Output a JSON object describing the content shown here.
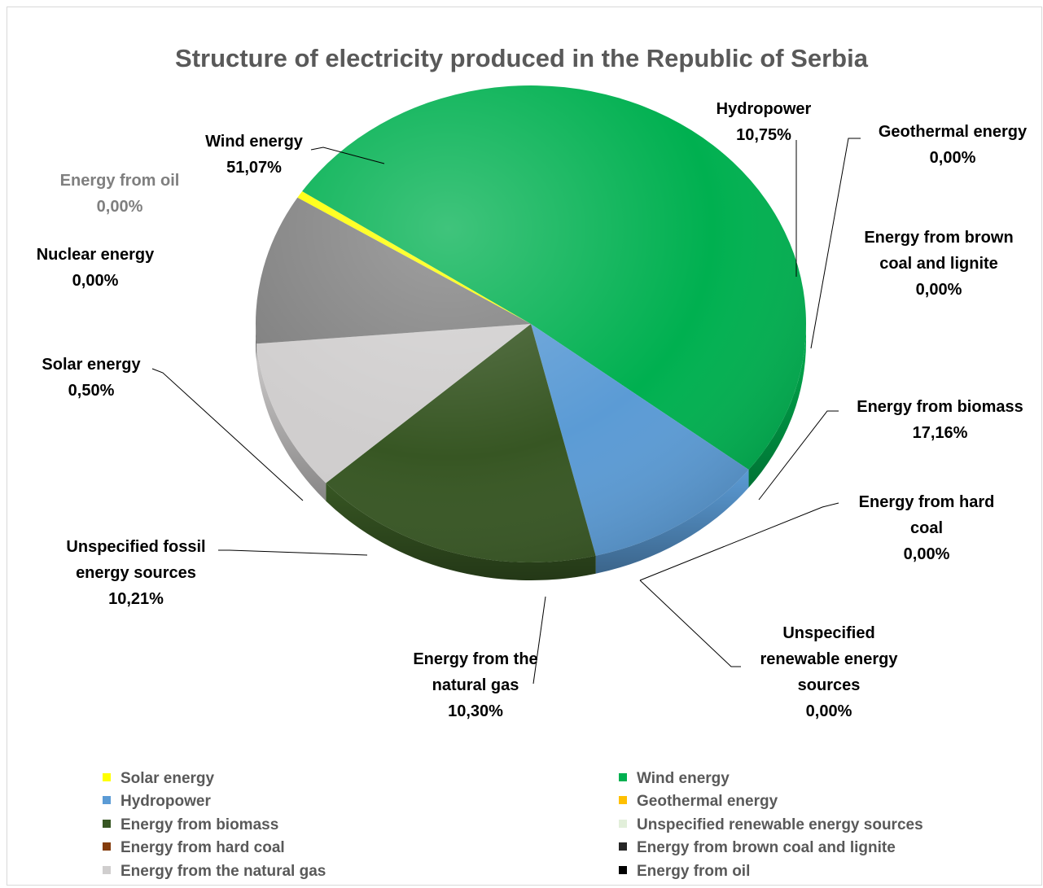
{
  "chart_data": {
    "type": "pie",
    "title": "Structure of electricity produced in the Republic of Serbia",
    "slices": [
      {
        "name": "Solar energy",
        "value": 0.5,
        "label": "0,50%",
        "color": "#ffff00"
      },
      {
        "name": "Wind energy",
        "value": 51.07,
        "label": "51,07%",
        "color": "#00b050"
      },
      {
        "name": "Hydropower",
        "value": 10.75,
        "label": "10,75%",
        "color": "#5b9bd5"
      },
      {
        "name": "Geothermal energy",
        "value": 0.0,
        "label": "0,00%",
        "color": "#ffc000"
      },
      {
        "name": "Energy from biomass",
        "value": 17.16,
        "label": "17,16%",
        "color": "#375623"
      },
      {
        "name": "Unspecified renewable energy sources",
        "value": 0.0,
        "label": "0,00%",
        "color": "#e2efda"
      },
      {
        "name": "Energy from hard coal",
        "value": 0.0,
        "label": "0,00%",
        "color": "#843c0c"
      },
      {
        "name": "Energy from brown coal and lignite",
        "value": 0.0,
        "label": "0,00%",
        "color": "#262626"
      },
      {
        "name": "Energy from the natural gas",
        "value": 10.3,
        "label": "10,30%",
        "color": "#d0cece"
      },
      {
        "name": "Energy from oil",
        "value": 0.0,
        "label": "0,00%",
        "color": "#000000"
      },
      {
        "name": "Nuclear energy",
        "value": 0.0,
        "label": "0,00%",
        "color": "#ff0000"
      },
      {
        "name": "Unspecified fossil energy sources",
        "value": 10.21,
        "label": "10,21%",
        "color": "#808080"
      }
    ],
    "legend_position": "bottom"
  },
  "data_labels": {
    "wind": {
      "name": "Wind energy",
      "pct": "51,07%"
    },
    "oil": {
      "name": "Energy from oil",
      "pct": "0,00%"
    },
    "nuclear": {
      "name": "Nuclear energy",
      "pct": "0,00%"
    },
    "solar": {
      "name": "Solar energy",
      "pct": "0,50%"
    },
    "fossil": {
      "line1": "Unspecified fossil",
      "line2": "energy sources",
      "pct": "10,21%"
    },
    "gas": {
      "line1": "Energy from the",
      "line2": "natural gas",
      "pct": "10,30%"
    },
    "unren": {
      "line1": "Unspecified",
      "line2": "renewable energy",
      "line3": "sources",
      "pct": "0,00%"
    },
    "hard": {
      "line1": "Energy from hard",
      "line2": "coal",
      "pct": "0,00%"
    },
    "biomass": {
      "name": "Energy from biomass",
      "pct": "17,16%"
    },
    "brown": {
      "line1": "Energy from brown",
      "line2": "coal and lignite",
      "pct": "0,00%"
    },
    "geo": {
      "name": "Geothermal energy",
      "pct": "0,00%"
    },
    "hydro": {
      "name": "Hydropower",
      "pct": "10,75%"
    }
  },
  "legend": [
    {
      "name": "Solar energy",
      "color": "#ffff00"
    },
    {
      "name": "Wind energy",
      "color": "#00b050"
    },
    {
      "name": "Hydropower",
      "color": "#5b9bd5"
    },
    {
      "name": "Geothermal energy",
      "color": "#ffc000"
    },
    {
      "name": "Energy from biomass",
      "color": "#375623"
    },
    {
      "name": "Unspecified renewable energy sources",
      "color": "#e2efda"
    },
    {
      "name": "Energy from hard coal",
      "color": "#843c0c"
    },
    {
      "name": "Energy from brown coal and lignite",
      "color": "#262626"
    },
    {
      "name": "Energy from the natural gas",
      "color": "#d0cece"
    },
    {
      "name": "Energy from oil",
      "color": "#000000"
    }
  ]
}
